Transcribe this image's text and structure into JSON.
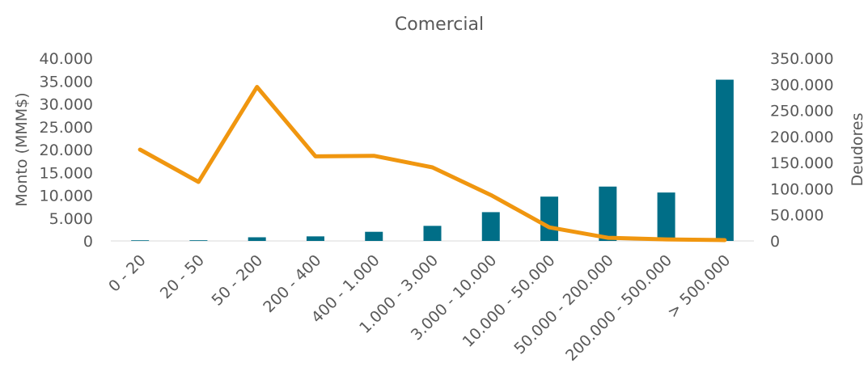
{
  "chart_data": {
    "type": "bar+line",
    "title": "Comercial",
    "ylabel_left": "Monto (MMM$)",
    "ylabel_right": "Deudores",
    "categories": [
      "0 - 20",
      "20 - 50",
      "50 - 200",
      "200 - 400",
      "400 - 1.000",
      "1.000 - 3.000",
      "3.000 - 10.000",
      "10.000 - 50.000",
      "50.000 - 200.000",
      "200.000 - 500.000",
      "> 500.000"
    ],
    "series": [
      {
        "type": "bar",
        "axis": "left",
        "color": "#006E87",
        "values": [
          10,
          150,
          800,
          1000,
          2000,
          3300,
          6300,
          9700,
          11900,
          10600,
          35300
        ]
      },
      {
        "type": "line",
        "axis": "right",
        "color": "#F0960F",
        "values": [
          175000,
          113000,
          295000,
          162000,
          163000,
          141000,
          88000,
          26000,
          6000,
          3000,
          1500
        ]
      }
    ],
    "left_axis": {
      "min": 0,
      "max": 40000,
      "step": 5000,
      "tick_labels": [
        "0",
        "5.000",
        "10.000",
        "15.000",
        "20.000",
        "25.000",
        "30.000",
        "35.000",
        "40.000"
      ]
    },
    "right_axis": {
      "min": 0,
      "max": 350000,
      "step": 50000,
      "tick_labels": [
        "0",
        "50.000",
        "100.000",
        "150.000",
        "200.000",
        "250.000",
        "300.000",
        "350.000"
      ]
    },
    "grid": false,
    "legend": "none"
  }
}
